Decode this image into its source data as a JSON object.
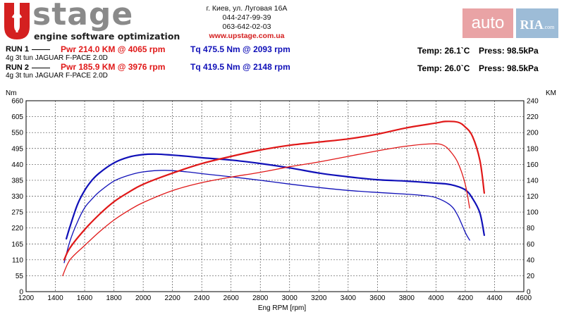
{
  "logo": {
    "word": "stage",
    "tagline": "engine software optimization"
  },
  "contact": {
    "address": "г. Киев, ул. Луговая 16А",
    "phone1": "044-247-99-39",
    "phone2": "063-642-02-03",
    "website": "www.upstage.com.ua"
  },
  "watermark": {
    "auto": "auto",
    "ria": "RIA",
    "suffix": ".com"
  },
  "runs": [
    {
      "label": "RUN 1",
      "description": "4g 3t tun JAGUAR F-PACE 2.0D",
      "power": "Pwr  214.0 KM @ 4065 rpm",
      "torque": "Tq 475.5 Nm @ 2093 rpm",
      "temp": "Temp: 26.1`C",
      "press": "Press: 98.5kPa"
    },
    {
      "label": "RUN 2",
      "description": "4g 3t tun JAGUAR F-PACE 2.0D",
      "power": "Pwr  185.9 KM @ 3976 rpm",
      "torque": "Tq 419.5 Nm @ 2148 rpm",
      "temp": "Temp: 26.0`C",
      "press": "Press: 98.5kPa"
    }
  ],
  "colors": {
    "power": "#e01818",
    "torque": "#1010b8",
    "grid": "#555555",
    "logo_red": "#d42020"
  },
  "chart_data": {
    "type": "line",
    "title": "",
    "xlabel": "Eng RPM [rpm]",
    "ylabel_left": "Nm",
    "ylabel_right": "KM",
    "xlim": [
      1200,
      4600
    ],
    "ylim_left": [
      0,
      660
    ],
    "ylim_right": [
      0,
      240
    ],
    "x_ticks": [
      1200,
      1400,
      1600,
      1800,
      2000,
      2200,
      2400,
      2600,
      2800,
      3000,
      3200,
      3400,
      3600,
      3800,
      4000,
      4200,
      4400,
      4600
    ],
    "y_ticks_left": [
      0,
      55,
      110,
      165,
      220,
      275,
      330,
      385,
      440,
      495,
      550,
      605,
      660
    ],
    "y_ticks_right": [
      0,
      20,
      40,
      60,
      80,
      100,
      120,
      140,
      160,
      180,
      200,
      220,
      240
    ],
    "grid": true,
    "series": [
      {
        "name": "Run 1 Torque",
        "axis": "left",
        "quantity": "torque",
        "line_width": 2.2,
        "x": [
          1475,
          1500,
          1550,
          1600,
          1650,
          1700,
          1800,
          1900,
          2000,
          2093,
          2200,
          2300,
          2400,
          2600,
          2800,
          3000,
          3200,
          3400,
          3600,
          3800,
          4000,
          4100,
          4200,
          4250,
          4300,
          4330
        ],
        "y": [
          183,
          225,
          300,
          350,
          385,
          410,
          445,
          465,
          474,
          475.5,
          472,
          468,
          463,
          455,
          443,
          428,
          410,
          397,
          387,
          382,
          375,
          370,
          352,
          322,
          272,
          195
        ]
      },
      {
        "name": "Run 2 Torque",
        "axis": "left",
        "quantity": "torque",
        "line_width": 1.3,
        "x": [
          1460,
          1500,
          1550,
          1600,
          1650,
          1700,
          1800,
          1900,
          2000,
          2148,
          2300,
          2400,
          2600,
          2800,
          3000,
          3200,
          3400,
          3600,
          3800,
          3900,
          4000,
          4100,
          4150,
          4200,
          4230
        ],
        "y": [
          100,
          175,
          240,
          290,
          320,
          345,
          382,
          402,
          414,
          419.5,
          414,
          408,
          397,
          385,
          372,
          360,
          350,
          343,
          337,
          333,
          325,
          298,
          262,
          205,
          178
        ]
      },
      {
        "name": "Run 1 Power",
        "axis": "right",
        "quantity": "power",
        "line_width": 2.2,
        "x": [
          1460,
          1500,
          1600,
          1700,
          1800,
          1900,
          2000,
          2200,
          2400,
          2600,
          2800,
          3000,
          3200,
          3400,
          3600,
          3800,
          4000,
          4065,
          4150,
          4200,
          4250,
          4300,
          4330
        ],
        "y": [
          40,
          55,
          78,
          97,
          113,
          125,
          135,
          149,
          161,
          170,
          178,
          184,
          188,
          192,
          198,
          206,
          212,
          214,
          213,
          207,
          195,
          165,
          124
        ]
      },
      {
        "name": "Run 2 Power",
        "axis": "right",
        "quantity": "power",
        "line_width": 1.3,
        "x": [
          1450,
          1500,
          1600,
          1700,
          1800,
          1900,
          2000,
          2200,
          2400,
          2600,
          2800,
          3000,
          3200,
          3400,
          3600,
          3800,
          3976,
          4050,
          4100,
          4150,
          4200,
          4230
        ],
        "y": [
          20,
          40,
          58,
          75,
          90,
          102,
          112,
          127,
          137,
          144,
          150,
          157,
          163,
          170,
          177,
          183,
          185.9,
          184,
          176,
          162,
          135,
          105
        ]
      }
    ]
  }
}
